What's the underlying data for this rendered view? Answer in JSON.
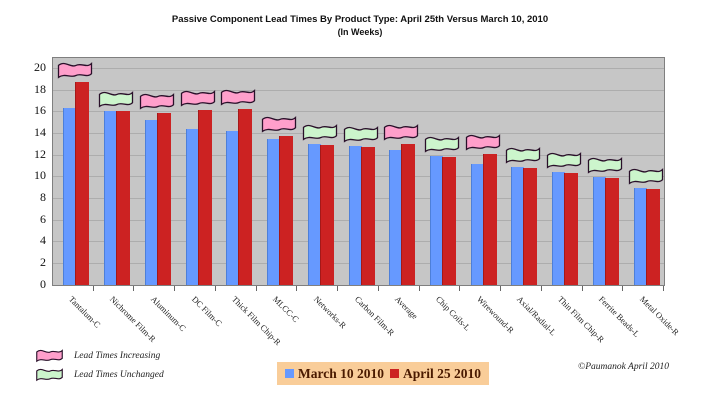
{
  "title": {
    "line1": "Passive Component Lead Times By Product Type: April 25th Versus March 10, 2010",
    "line2": "(In Weeks)"
  },
  "chart_data": {
    "type": "bar",
    "categories": [
      "Tantalum-C",
      "Nichrome Film-R",
      "Aluminum-C",
      "DC Film-C",
      "Thick Film Chip-R",
      "MLCC-C",
      "Networks-R",
      "Carbon Film-R",
      "Average",
      "Chip Coils-L",
      "Wirewound-R",
      "Axial/Radial-L",
      "Thin Film Chip-R",
      "Ferrite Beads-L",
      "Metal Oxide-R"
    ],
    "series": [
      {
        "name": "March 10 2010",
        "color": "#6699FF",
        "values": [
          16.3,
          16.0,
          15.2,
          14.4,
          14.2,
          13.4,
          13.0,
          12.8,
          12.4,
          11.9,
          11.1,
          10.9,
          10.4,
          9.9,
          8.9
        ]
      },
      {
        "name": "April 25 2010",
        "color": "#CC2222",
        "values": [
          18.7,
          16.0,
          15.8,
          16.1,
          16.2,
          13.7,
          12.9,
          12.7,
          13.0,
          11.8,
          12.1,
          10.8,
          10.3,
          9.8,
          8.8
        ]
      }
    ],
    "flags": [
      "increasing",
      "unchanged",
      "increasing",
      "increasing",
      "increasing",
      "increasing",
      "unchanged",
      "unchanged",
      "increasing",
      "unchanged",
      "increasing",
      "unchanged",
      "unchanged",
      "unchanged",
      "unchanged"
    ],
    "title": "Passive Component Lead Times By Product Type: April 25th Versus March 10, 2010",
    "subtitle": "(In Weeks)",
    "xlabel": "",
    "ylabel": "",
    "ylim": [
      0,
      20
    ],
    "ytick_step": 2,
    "grid": true,
    "legend_position": "bottom-center"
  },
  "flag_legend": {
    "increasing_label": "Lead Times Increasing",
    "unchanged_label": "Lead Times Unchanged",
    "increasing_color": "#ff9fcb",
    "unchanged_color": "#ccf5cc"
  },
  "footer": {
    "copyright": "©Paumanok  April 2010"
  },
  "colors": {
    "plot_background": "#c6c6c6",
    "march_blue": "#6699FF",
    "april_red": "#CC2222",
    "legend_background": "#f9cd99"
  }
}
